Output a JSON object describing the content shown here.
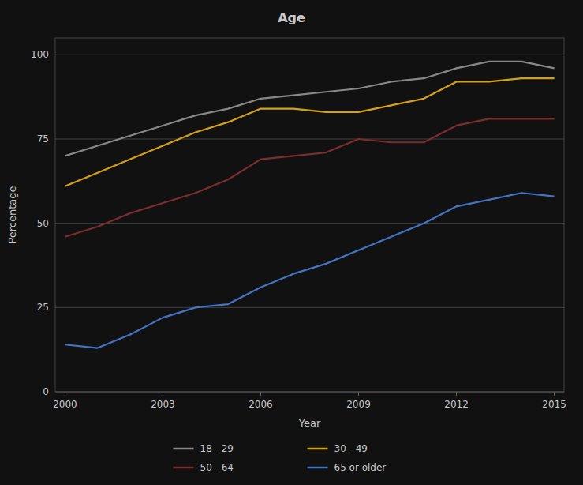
{
  "chart_data": {
    "type": "line",
    "title": "Age",
    "xlabel": "Year",
    "ylabel": "Percentage",
    "x": [
      2000,
      2001,
      2002,
      2003,
      2004,
      2005,
      2006,
      2007,
      2008,
      2009,
      2010,
      2011,
      2012,
      2013,
      2014,
      2015
    ],
    "series": [
      {
        "name": "18 - 29",
        "color": "#888888",
        "values": [
          70,
          73,
          76,
          79,
          82,
          84,
          87,
          88,
          89,
          90,
          92,
          93,
          96,
          98,
          98,
          96
        ]
      },
      {
        "name": "30 - 49",
        "color": "#d4a017",
        "values": [
          61,
          65,
          69,
          73,
          77,
          80,
          84,
          84,
          83,
          83,
          85,
          87,
          92,
          92,
          93,
          93
        ]
      },
      {
        "name": "50 - 64",
        "color": "#7b2d2d",
        "values": [
          46,
          49,
          53,
          56,
          59,
          63,
          69,
          70,
          71,
          75,
          74,
          74,
          79,
          81,
          81,
          81
        ]
      },
      {
        "name": "65 or older",
        "color": "#4472c4",
        "values": [
          14,
          13,
          17,
          22,
          25,
          26,
          31,
          35,
          38,
          42,
          46,
          50,
          55,
          57,
          59,
          58
        ]
      }
    ],
    "xlim": [
      1999.7,
      2015.3
    ],
    "xticks": [
      2000,
      2003,
      2006,
      2009,
      2012,
      2015
    ],
    "ylim": [
      0,
      105
    ],
    "yticks": [
      0,
      25,
      50,
      75,
      100
    ],
    "grid": true,
    "legend": "bottom"
  }
}
